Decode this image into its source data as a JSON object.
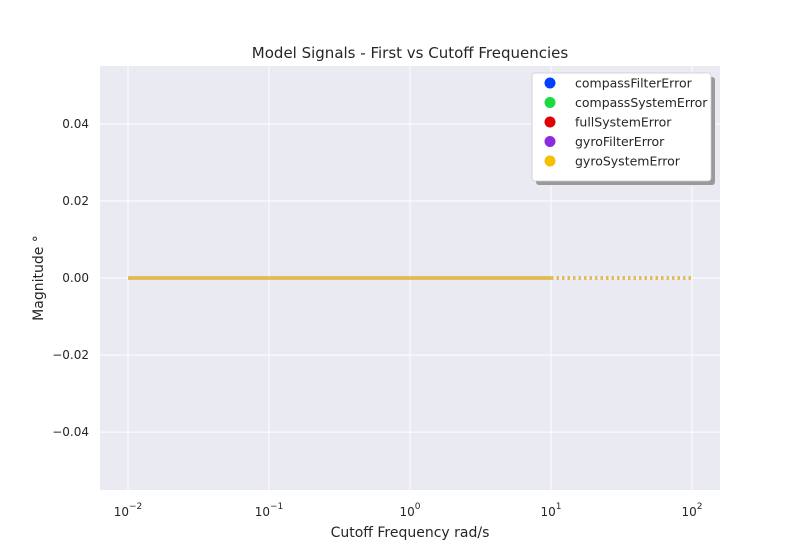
{
  "chart_data": {
    "type": "line",
    "title": "Model Signals - First vs Cutoff Frequencies",
    "xlabel": "Cutoff Frequency rad/s",
    "ylabel": "Magnitude °",
    "x_scale": "log",
    "xlim": [
      0.01,
      100
    ],
    "ylim": [
      -0.055,
      0.055
    ],
    "x_ticks": [
      {
        "value": 0.01,
        "base": "10",
        "exp": "−2"
      },
      {
        "value": 0.1,
        "base": "10",
        "exp": "−1"
      },
      {
        "value": 1,
        "base": "10",
        "exp": "0"
      },
      {
        "value": 10,
        "base": "10",
        "exp": "1"
      },
      {
        "value": 100,
        "base": "10",
        "exp": "2"
      }
    ],
    "y_ticks": [
      {
        "value": 0.04,
        "label": "0.04"
      },
      {
        "value": 0.02,
        "label": "0.02"
      },
      {
        "value": 0.0,
        "label": "0.00"
      },
      {
        "value": -0.02,
        "label": "−0.02"
      },
      {
        "value": -0.04,
        "label": "−0.04"
      }
    ],
    "grid": true,
    "legend_position": "top-right",
    "series": [
      {
        "name": "compassFilterError",
        "color": "#0040ff",
        "segments": [
          {
            "x": [
              0.01,
              10
            ],
            "y": [
              0,
              0
            ],
            "style": "solid"
          },
          {
            "x": [
              10,
              100
            ],
            "y": [
              0,
              0
            ],
            "style": "dotted"
          }
        ]
      },
      {
        "name": "compassSystemError",
        "color": "#1adb3d",
        "segments": [
          {
            "x": [
              0.01,
              10
            ],
            "y": [
              0,
              0
            ],
            "style": "solid"
          },
          {
            "x": [
              10,
              100
            ],
            "y": [
              0,
              0
            ],
            "style": "dotted"
          }
        ]
      },
      {
        "name": "fullSystemError",
        "color": "#e00000",
        "segments": [
          {
            "x": [
              0.01,
              10
            ],
            "y": [
              0,
              0
            ],
            "style": "solid"
          },
          {
            "x": [
              10,
              100
            ],
            "y": [
              0,
              0
            ],
            "style": "dotted"
          }
        ]
      },
      {
        "name": "gyroFilterError",
        "color": "#8a2be2",
        "segments": [
          {
            "x": [
              0.01,
              10
            ],
            "y": [
              0,
              0
            ],
            "style": "solid"
          },
          {
            "x": [
              10,
              100
            ],
            "y": [
              0,
              0
            ],
            "style": "dotted"
          }
        ]
      },
      {
        "name": "gyroSystemError",
        "color": "#f5c000",
        "segments": [
          {
            "x": [
              0.01,
              10
            ],
            "y": [
              0,
              0
            ],
            "style": "solid"
          },
          {
            "x": [
              10,
              100
            ],
            "y": [
              0,
              0
            ],
            "style": "dotted"
          }
        ]
      }
    ]
  }
}
